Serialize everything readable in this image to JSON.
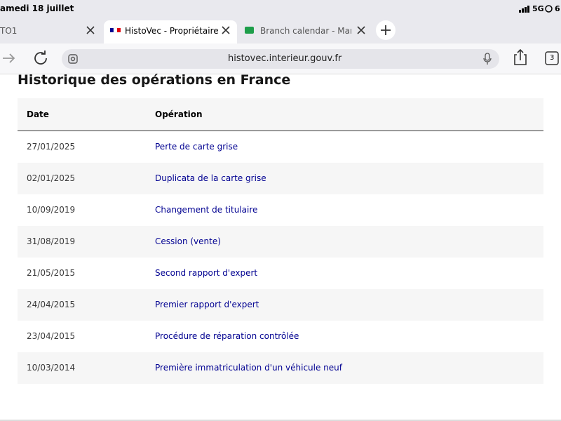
{
  "status_bar": {
    "date": "amedi 18 juillet",
    "network": "5G",
    "battery": "6"
  },
  "tabs": [
    "TO1",
    "HistoVec - Propriétaire",
    "Branch calendar - Marse"
  ],
  "address_bar": {
    "url": "histovec.interieur.gouv.fr",
    "tab_count": "3"
  },
  "page": {
    "heading": "Historique des opérations en France",
    "table": {
      "headers": [
        "Date",
        "Opération"
      ],
      "rows": [
        [
          "27/01/2025",
          "Perte de carte grise"
        ],
        [
          "02/01/2025",
          "Duplicata de la carte grise"
        ],
        [
          "10/09/2019",
          "Changement de titulaire"
        ],
        [
          "31/08/2019",
          "Cession (vente)"
        ],
        [
          "21/05/2015",
          "Second rapport d'expert"
        ],
        [
          "24/04/2015",
          "Premier rapport d'expert"
        ],
        [
          "23/04/2015",
          "Procédure de réparation contrôlée"
        ],
        [
          "10/03/2014",
          "Première immatriculation d'un véhicule neuf"
        ]
      ]
    }
  }
}
